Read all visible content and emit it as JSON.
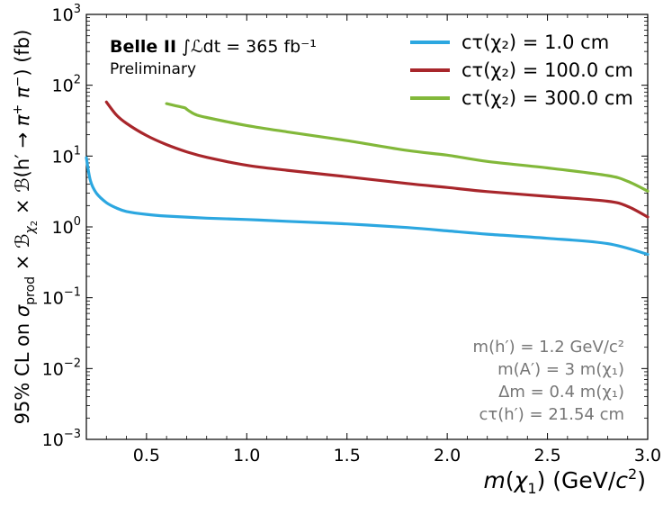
{
  "chart_data": {
    "type": "line",
    "ylabel": "95% CL on σprod × Bχ2 × B(h′ → π+ π−) (fb)",
    "xlabel": "m(χ1) (GeV/c2)",
    "xlim": [
      0.2,
      3.0
    ],
    "ylim": [
      0.001,
      1000
    ],
    "yscale": "log",
    "grid": false,
    "legend_position": "top-right",
    "x_tick_labels": [
      "0.5",
      "1.0",
      "1.5",
      "2.0",
      "2.5",
      "3.0"
    ],
    "y_tick_labels": [
      {
        "base": "10",
        "exp": "−3"
      },
      {
        "base": "10",
        "exp": "−2"
      },
      {
        "base": "10",
        "exp": "−1"
      },
      {
        "base": "10",
        "exp": "0"
      },
      {
        "base": "10",
        "exp": "1"
      },
      {
        "base": "10",
        "exp": "2"
      },
      {
        "base": "10",
        "exp": "3"
      }
    ],
    "experiment": {
      "name": "Belle II",
      "luminosity": "∫ℒdt = 365 fb⁻¹",
      "status": "Preliminary"
    },
    "parameters": [
      "m(h′) = 1.2 GeV/c²",
      "m(A′) = 3 m(χ₁)",
      "Δm = 0.4 m(χ₁)",
      "cτ(h′) = 21.54 cm"
    ],
    "series": [
      {
        "name": "cτ(χ₂) = 1.0 cm",
        "color": "#2ca7e0",
        "x": [
          0.2,
          0.22,
          0.25,
          0.3,
          0.35,
          0.4,
          0.5,
          0.6,
          0.8,
          1.0,
          1.2,
          1.5,
          1.8,
          2.0,
          2.2,
          2.5,
          2.8,
          3.0
        ],
        "y": [
          9.5,
          4.5,
          3.0,
          2.2,
          1.85,
          1.65,
          1.5,
          1.42,
          1.33,
          1.27,
          1.2,
          1.1,
          0.98,
          0.88,
          0.79,
          0.69,
          0.58,
          0.41
        ]
      },
      {
        "name": "cτ(χ₂) = 100.0 cm",
        "color": "#a8262b",
        "x": [
          0.3,
          0.35,
          0.4,
          0.5,
          0.6,
          0.7,
          0.8,
          1.0,
          1.2,
          1.5,
          1.8,
          2.0,
          2.2,
          2.5,
          2.8,
          2.9,
          3.0
        ],
        "y": [
          58,
          38,
          29,
          19.5,
          14.5,
          11.5,
          9.6,
          7.4,
          6.3,
          5.1,
          4.1,
          3.6,
          3.15,
          2.7,
          2.3,
          1.95,
          1.38
        ]
      },
      {
        "name": "cτ(χ₂) = 300.0 cm",
        "color": "#82b83a",
        "x": [
          0.6,
          0.65,
          0.69,
          0.7,
          0.72,
          0.75,
          0.8,
          1.0,
          1.2,
          1.5,
          1.8,
          2.0,
          2.2,
          2.5,
          2.8,
          2.9,
          3.0
        ],
        "y": [
          55,
          51,
          48,
          46,
          42,
          38,
          35,
          27,
          22,
          16.5,
          12,
          10.3,
          8.4,
          6.8,
          5.3,
          4.4,
          3.2
        ]
      }
    ]
  }
}
